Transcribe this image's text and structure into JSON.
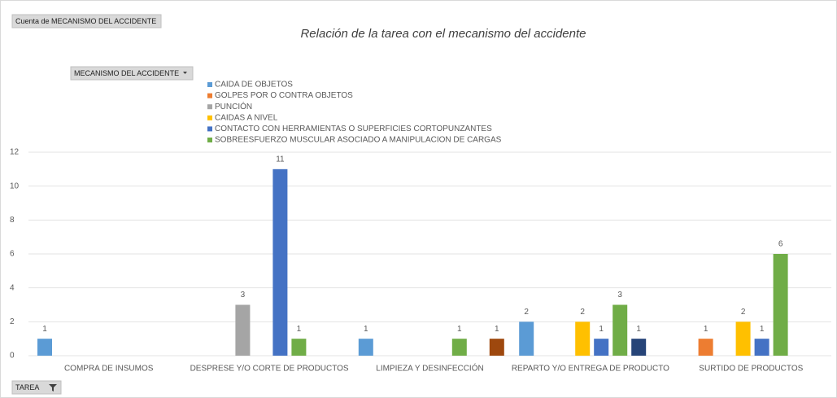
{
  "chart_data": {
    "type": "bar",
    "title": "Relación de la tarea con el mecanismo del accidente",
    "value_field_button": "Cuenta de MECANISMO DEL ACCIDENTE",
    "legend_field_button": "MECANISMO DEL ACCIDENTE",
    "axis_field_button": "TAREA",
    "categories": [
      "COMPRA DE INSUMOS",
      "DESPRESE Y/O CORTE DE PRODUCTOS",
      "LIMPIEZA Y DESINFECCIÓN",
      "REPARTO Y/O ENTREGA DE PRODUCTO",
      "SURTIDO DE PRODUCTOS"
    ],
    "series": [
      {
        "name": "CAIDA DE OBJETOS",
        "color": "#5b9bd5",
        "values": [
          1,
          null,
          1,
          2,
          null
        ]
      },
      {
        "name": "GOLPES POR  O CONTRA OBJETOS",
        "color": "#ed7d31",
        "values": [
          null,
          null,
          null,
          null,
          1
        ]
      },
      {
        "name": "PUNCIÓN",
        "color": "#a5a5a5",
        "values": [
          null,
          3,
          null,
          null,
          null
        ]
      },
      {
        "name": "CAIDAS A NIVEL",
        "color": "#ffc000",
        "values": [
          null,
          null,
          null,
          2,
          2
        ]
      },
      {
        "name": "CONTACTO CON HERRAMIENTAS O SUPERFICIES CORTOPUNZANTES",
        "color": "#4472c4",
        "values": [
          null,
          11,
          null,
          1,
          1
        ]
      },
      {
        "name": "SOBREESFUERZO MUSCULAR ASOCIADO A MANIPULACION DE CARGAS",
        "color": "#70ad47",
        "values": [
          null,
          1,
          1,
          3,
          6
        ]
      },
      {
        "name": null,
        "color": "#264478",
        "values": [
          null,
          null,
          null,
          1,
          null
        ]
      },
      {
        "name": null,
        "color": "#9e480e",
        "values": [
          null,
          null,
          1,
          null,
          null
        ]
      }
    ],
    "ylim": [
      0,
      12
    ],
    "yticks": [
      0,
      2,
      4,
      6,
      8,
      10,
      12
    ],
    "grid": true,
    "data_labels": true
  }
}
